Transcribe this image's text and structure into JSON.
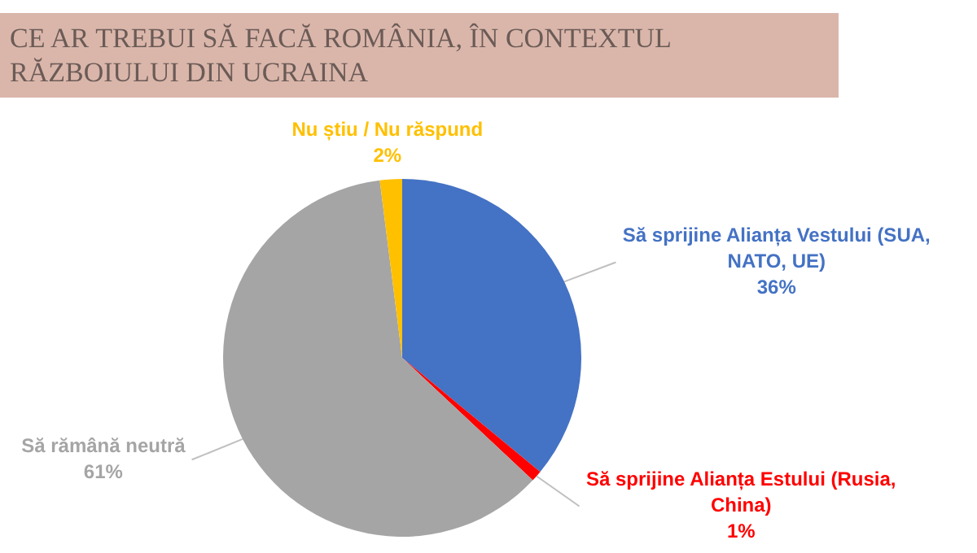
{
  "chart_data": {
    "type": "pie",
    "title": "CE AR TREBUI SĂ FACĂ ROMÂNIA, ÎN CONTEXTUL RĂZBOIULUI DIN UCRAINA",
    "categories": [
      "Să sprijine Alianța Vestului (SUA, NATO, UE)",
      "Să sprijine Alianța Estului (Rusia, China)",
      "Să rămână neutră",
      "Nu știu / Nu răspund"
    ],
    "values": [
      36,
      1,
      61,
      2
    ],
    "colors": [
      "#4472c4",
      "#ff0000",
      "#a5a5a5",
      "#ffc000"
    ],
    "value_labels": [
      "36%",
      "1%",
      "61%",
      "2%"
    ],
    "legend": false
  }
}
